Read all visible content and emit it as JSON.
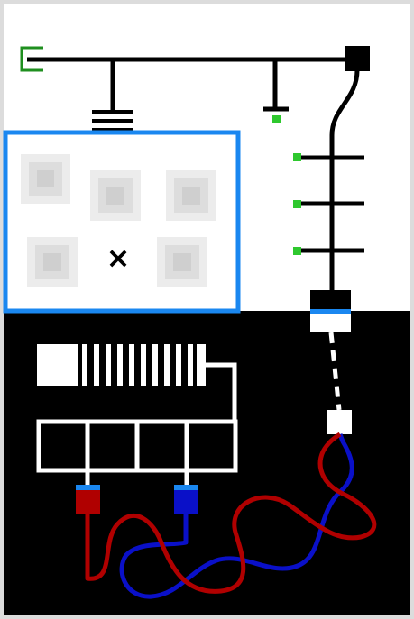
{
  "puzzle": {
    "palette": {
      "frame": "#dcdcdc",
      "background_outer": "#f3dde3",
      "top_half": "#ffffff",
      "bottom_half": "#000000",
      "wire": "#000000",
      "wire_light": "#ffffff",
      "panel_border": "#1a87f0",
      "tile_outer": "#ececec",
      "tile_mid": "#dddddd",
      "tile_inner": "#cfcfcf",
      "terminal_green": "#2ec82e",
      "socket_green": "#1f8f1f",
      "cable_red": "#b00000",
      "cable_blue": "#0a10c8",
      "plug_cap_blue": "#1a87f0"
    },
    "panel": {
      "tile_count": 5,
      "empty_slot_mark": "×"
    },
    "antenna": {
      "terminal_count": 3
    },
    "battery": {
      "segments": 4
    },
    "spring": {
      "coils": 9
    },
    "plugs": [
      {
        "name": "red",
        "color": "#b00000"
      },
      {
        "name": "blue",
        "color": "#0a10c8"
      }
    ]
  }
}
